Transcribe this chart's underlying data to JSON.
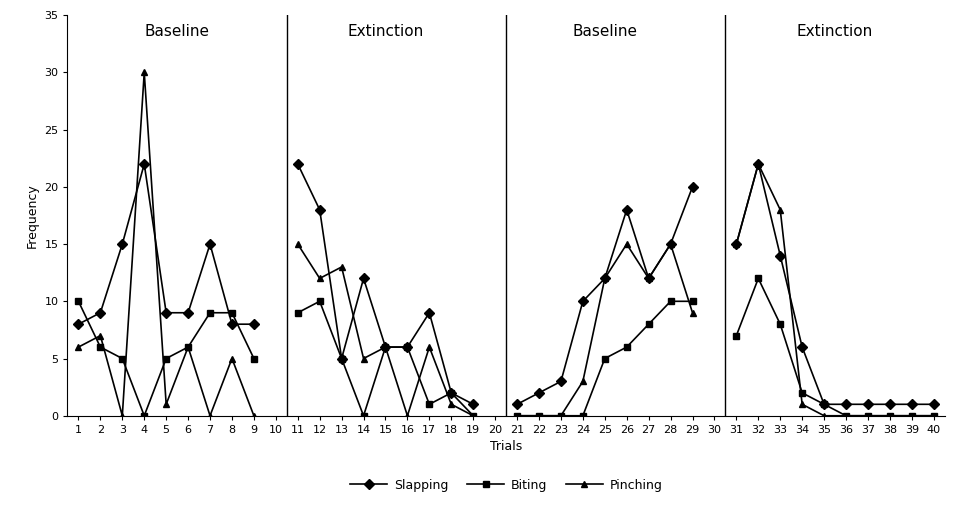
{
  "trials": [
    1,
    2,
    3,
    4,
    5,
    6,
    7,
    8,
    9,
    10,
    11,
    12,
    13,
    14,
    15,
    16,
    17,
    18,
    19,
    20,
    21,
    22,
    23,
    24,
    25,
    26,
    27,
    28,
    29,
    30,
    31,
    32,
    33,
    34,
    35,
    36,
    37,
    38,
    39,
    40
  ],
  "slapping": [
    8,
    9,
    15,
    22,
    9,
    9,
    15,
    8,
    8,
    null,
    22,
    18,
    5,
    12,
    6,
    6,
    9,
    2,
    1,
    null,
    1,
    2,
    3,
    10,
    12,
    18,
    12,
    15,
    20,
    null,
    15,
    22,
    14,
    6,
    1,
    1,
    1,
    1,
    1,
    1
  ],
  "biting": [
    10,
    6,
    5,
    0,
    5,
    6,
    9,
    9,
    5,
    null,
    9,
    10,
    5,
    0,
    6,
    6,
    1,
    2,
    0,
    null,
    0,
    0,
    0,
    0,
    5,
    6,
    8,
    10,
    10,
    null,
    7,
    12,
    8,
    2,
    1,
    0,
    0,
    0,
    0,
    0
  ],
  "pinching": [
    6,
    7,
    0,
    30,
    1,
    6,
    0,
    5,
    0,
    null,
    15,
    12,
    13,
    5,
    6,
    0,
    6,
    1,
    0,
    null,
    0,
    0,
    0,
    3,
    12,
    15,
    12,
    15,
    9,
    null,
    15,
    22,
    18,
    1,
    0,
    0,
    0,
    0,
    0,
    0
  ],
  "phase_lines": [
    10,
    20,
    30
  ],
  "phase_labels": [
    {
      "x": 5.5,
      "label": "Baseline"
    },
    {
      "x": 15.0,
      "label": "Extinction"
    },
    {
      "x": 25.0,
      "label": "Baseline"
    },
    {
      "x": 35.5,
      "label": "Extinction"
    }
  ],
  "ylim": [
    0,
    35
  ],
  "yticks": [
    0,
    5,
    10,
    15,
    20,
    25,
    30,
    35
  ],
  "xlabel": "Trials",
  "ylabel": "Frequency",
  "legend_labels": [
    "Slapping",
    "Biting",
    "Pinching"
  ],
  "line_color": "#000000",
  "slapping_marker": "D",
  "biting_marker": "s",
  "pinching_marker": "^",
  "markersize": 5,
  "linewidth": 1.2,
  "title_fontsize": 11,
  "axis_fontsize": 9,
  "tick_fontsize": 8
}
